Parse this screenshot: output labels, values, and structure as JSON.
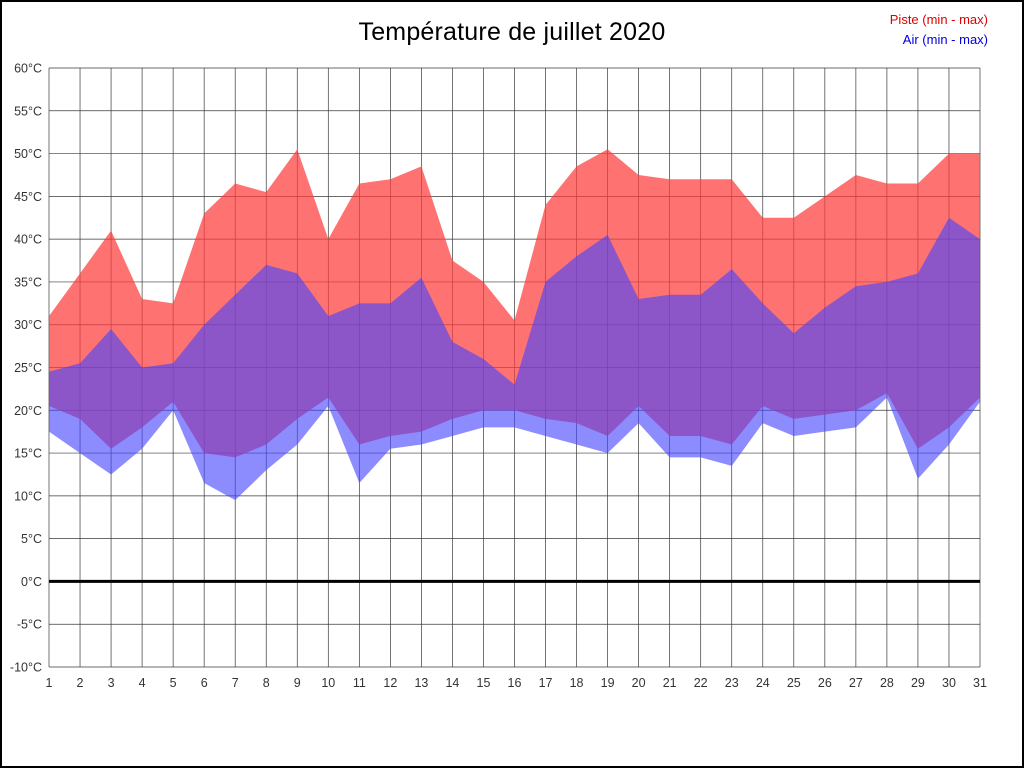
{
  "chart_data": {
    "type": "area",
    "title": "Température de juillet 2020",
    "xlabel": "",
    "ylabel": "",
    "ylim": [
      -10,
      60
    ],
    "grid": true,
    "legend_position": "top-right",
    "axis_color": "#333333",
    "grid_color": "#3a3a3a",
    "zero_line_color": "#000000",
    "x_labels": [
      "1",
      "2",
      "3",
      "4",
      "5",
      "6",
      "7",
      "8",
      "9",
      "10",
      "11",
      "12",
      "13",
      "14",
      "15",
      "16",
      "17",
      "18",
      "19",
      "20",
      "21",
      "22",
      "23",
      "24",
      "25",
      "26",
      "27",
      "28",
      "29",
      "30",
      "31"
    ],
    "y_ticks": [
      {
        "value": 60,
        "label": "60°C"
      },
      {
        "value": 55,
        "label": "55°C"
      },
      {
        "value": 50,
        "label": "50°C"
      },
      {
        "value": 45,
        "label": "45°C"
      },
      {
        "value": 40,
        "label": "40°C"
      },
      {
        "value": 35,
        "label": "35°C"
      },
      {
        "value": 30,
        "label": "30°C"
      },
      {
        "value": 25,
        "label": "25°C"
      },
      {
        "value": 20,
        "label": "20°C"
      },
      {
        "value": 15,
        "label": "15°C"
      },
      {
        "value": 10,
        "label": "10°C"
      },
      {
        "value": 5,
        "label": "5°C"
      },
      {
        "value": 0,
        "label": "0°C"
      },
      {
        "value": -5,
        "label": "-5°C"
      },
      {
        "value": -10,
        "label": "-10°C"
      }
    ],
    "series": [
      {
        "name": "Piste",
        "legend": "Piste (min - max)",
        "text_color": "#dd0000",
        "color": "#ff3c3c",
        "opacity": 0.72,
        "min": [
          20.5,
          19,
          15.5,
          18,
          21,
          15,
          14.5,
          16,
          19,
          21.5,
          16,
          17,
          17.5,
          19,
          20,
          20,
          19,
          18.5,
          17,
          20.5,
          17,
          17,
          16,
          20.5,
          19,
          19.5,
          20,
          22,
          15.5,
          18,
          21.5
        ],
        "max": [
          31,
          36,
          41,
          33,
          32.5,
          43,
          46.5,
          45.5,
          50.5,
          40,
          46.5,
          47,
          48.5,
          37.5,
          35,
          30.5,
          44,
          48.5,
          50.5,
          47.5,
          47,
          47,
          47,
          42.5,
          42.5,
          45,
          47.5,
          46.5,
          46.5,
          50,
          50
        ]
      },
      {
        "name": "Air",
        "legend": "Air (min - max)",
        "text_color": "#0000dd",
        "color": "#4646ff",
        "opacity": 0.62,
        "min": [
          17.5,
          15,
          12.5,
          15.5,
          20,
          11.5,
          9.5,
          13,
          16,
          20.5,
          11.5,
          15.5,
          16,
          17,
          18,
          18,
          17,
          16,
          15,
          18.5,
          14.5,
          14.5,
          13.5,
          18.5,
          17,
          17.5,
          18,
          21.5,
          12,
          16,
          21
        ],
        "max": [
          24.5,
          25.5,
          29.5,
          25,
          25.5,
          30,
          33.5,
          37,
          36,
          31,
          32.5,
          32.5,
          35.5,
          28,
          26,
          23,
          35,
          38,
          40.5,
          33,
          33.5,
          33.5,
          36.5,
          32.5,
          29,
          32,
          34.5,
          35,
          36,
          42.5,
          40
        ]
      }
    ]
  }
}
